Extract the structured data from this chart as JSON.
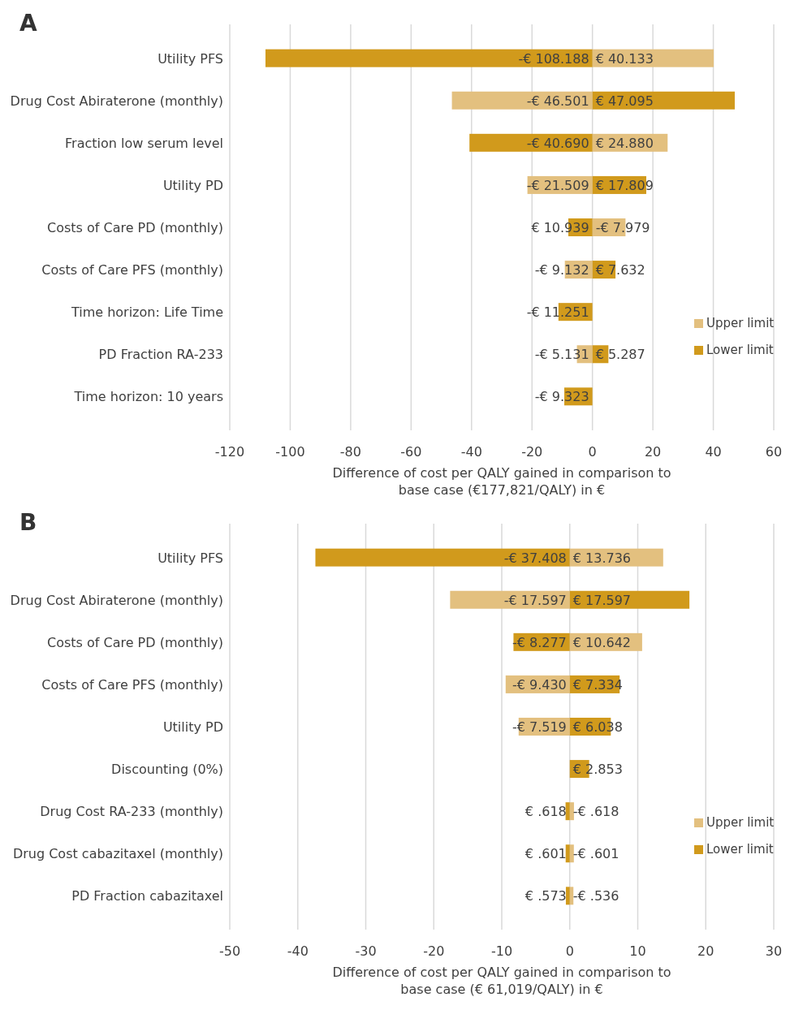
{
  "chart_data": [
    {
      "type": "bar",
      "orientation": "horizontal",
      "title": "A",
      "categories": [
        "Utility PFS",
        "Drug Cost Abiraterone (monthly)",
        "Fraction low serum level",
        "Utility PD",
        "Costs of Care PD (monthly)",
        "Costs of Care PFS (monthly)",
        "Time horizon: Life Time",
        "PD Fraction RA-233",
        "Time horizon: 10 years"
      ],
      "series": [
        {
          "name": "Upper limit",
          "color": "#e3c07f",
          "values": [
            40.133,
            -46.501,
            24.88,
            -21.509,
            10.939,
            -9.132,
            null,
            -5.131,
            null
          ],
          "value_labels": [
            "€ 40.133",
            "-€ 46.501",
            "€ 24.880",
            "-€ 21.509",
            null,
            "-€ 9.132",
            null,
            "-€ 5.131",
            null
          ]
        },
        {
          "name": "Lower limit",
          "color": "#d19a1c",
          "values": [
            -108.188,
            47.095,
            -40.69,
            17.809,
            -7.979,
            7.632,
            -11.251,
            5.287,
            -9.323
          ],
          "value_labels": [
            "-€ 108.188",
            "€ 47.095",
            "-€ 40.690",
            "€ 17.809",
            null,
            "€ 7.632",
            "-€ 11.251",
            "€ 5.287",
            "-€ 9.323"
          ]
        }
      ],
      "stacked": true,
      "annotations": [
        {
          "text": "€ 10.939",
          "x": -7.979,
          "y": "Costs of Care PD (monthly)"
        },
        {
          "text": "-€ 7.979",
          "x": 10.939,
          "y": "Costs of Care PD (monthly)"
        }
      ],
      "xlim": [
        -120,
        60
      ],
      "xticks": [
        -120,
        -100,
        -80,
        -60,
        -40,
        -20,
        0,
        20,
        40,
        60
      ],
      "xlabel": "Difference of cost per QALY gained in comparison to base case (€177,821/QALY)  in €",
      "grid": "x",
      "legend": "right"
    },
    {
      "type": "bar",
      "orientation": "horizontal",
      "title": "B",
      "categories": [
        "Utility PFS",
        "Drug Cost Abiraterone (monthly)",
        "Costs of Care PD (monthly)",
        "Costs of Care PFS (monthly)",
        "Utility PD",
        "Discounting (0%)",
        "Drug Cost RA-233 (monthly)",
        "Drug Cost cabazitaxel (monthly)",
        "PD Fraction cabazitaxel"
      ],
      "series": [
        {
          "name": "Upper limit",
          "color": "#e3c07f",
          "values": [
            13.736,
            -17.597,
            10.642,
            -9.43,
            -7.519,
            null,
            0.618,
            0.601,
            0.536
          ],
          "value_labels": [
            "€ 13.736",
            "-€ 17.597",
            "€ 10.642",
            "-€ 9.430",
            "-€ 7.519",
            null,
            null,
            null,
            null
          ]
        },
        {
          "name": "Lower limit",
          "color": "#d19a1c",
          "values": [
            -37.408,
            17.597,
            -8.277,
            7.334,
            6.038,
            2.853,
            -0.618,
            -0.601,
            -0.573
          ],
          "value_labels": [
            "-€ 37.408",
            "€ 17.597",
            "-€ 8.277",
            "€ 7.334",
            "€ 6.038",
            "€ 2.853",
            null,
            null,
            null
          ]
        }
      ],
      "stacked": true,
      "annotations": [
        {
          "text": "€ .618",
          "x": -0.618,
          "y": "Drug Cost RA-233 (monthly)"
        },
        {
          "text": "-€ .618",
          "x": 0.618,
          "y": "Drug Cost RA-233 (monthly)"
        },
        {
          "text": "€ .601",
          "x": -0.601,
          "y": "Drug Cost cabazitaxel (monthly)"
        },
        {
          "text": "-€ .601",
          "x": 0.601,
          "y": "Drug Cost cabazitaxel (monthly)"
        },
        {
          "text": "€ .573",
          "x": -0.573,
          "y": "PD Fraction cabazitaxel"
        },
        {
          "text": "-€ .536",
          "x": 0.536,
          "y": "PD Fraction cabazitaxel"
        }
      ],
      "xlim": [
        -50,
        30
      ],
      "xticks": [
        -50,
        -40,
        -30,
        -20,
        -10,
        0,
        10,
        20,
        30
      ],
      "xlabel": "Difference of cost per QALY gained in comparison to base case (€ 61,019/QALY) in €",
      "grid": "x",
      "legend": "right"
    }
  ]
}
